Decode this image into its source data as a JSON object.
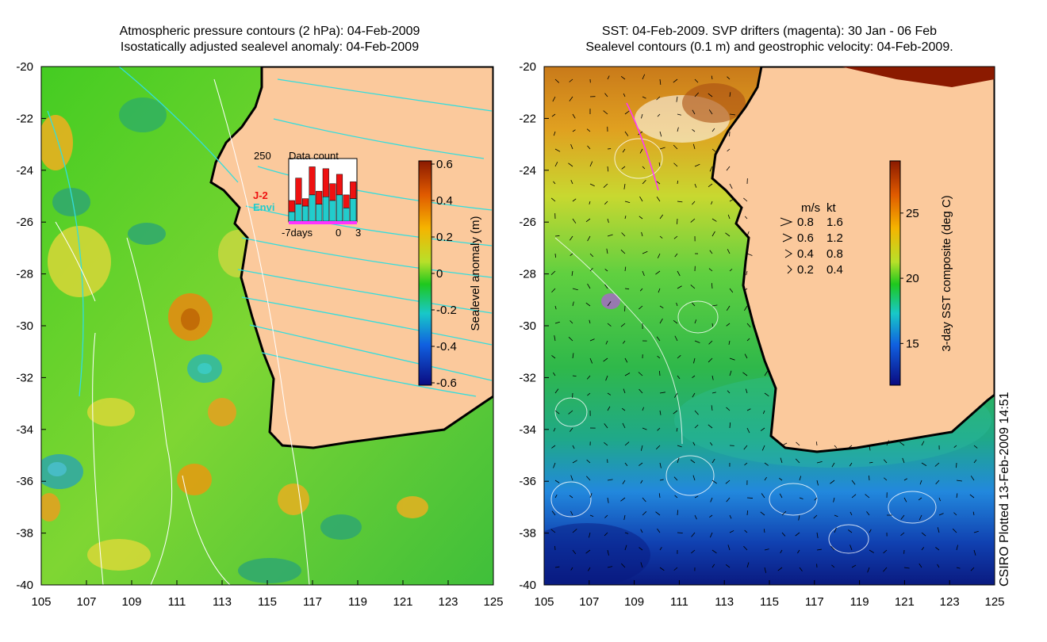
{
  "left_panel": {
    "title_line1": "Atmospheric pressure contours (2 hPa): 04-Feb-2009",
    "title_line2": "Isostatically adjusted sealevel anomaly: 04-Feb-2009",
    "colorbar_label": "Sealevel anomaly (m)",
    "colorbar_ticks": [
      "0.6",
      "0.4",
      "0.2",
      "0",
      "-0.2",
      "-0.4",
      "-0.6"
    ],
    "inset": {
      "title": "Data count",
      "max_label": "250",
      "legend_j2": "J-2",
      "legend_envi": "Envi",
      "x_left": "-7days",
      "x_zero": "0",
      "x_right": "3",
      "bars_total": [
        110,
        230,
        120,
        290,
        160,
        280,
        200,
        250,
        140,
        210
      ],
      "bars_envi": [
        50,
        90,
        80,
        140,
        90,
        130,
        110,
        140,
        70,
        120
      ],
      "ymax": 330,
      "colors": {
        "j2": "#ee1111",
        "envi": "#22cccc"
      }
    }
  },
  "right_panel": {
    "title_line1": "SST: 04-Feb-2009. SVP drifters (magenta): 30 Jan - 06 Feb",
    "title_line2": "Sealevel contours (0.1 m) and geostrophic velocity: 04-Feb-2009.",
    "colorbar_label": "3-day SST composite (deg C)",
    "colorbar_ticks": [
      "25",
      "20",
      "15"
    ],
    "velocity_legend": {
      "header_ms": "m/s",
      "header_kt": "kt",
      "rows": [
        {
          "ms": "0.8",
          "kt": "1.6"
        },
        {
          "ms": "0.6",
          "kt": "1.2"
        },
        {
          "ms": "0.4",
          "kt": "0.8"
        },
        {
          "ms": "0.2",
          "kt": "0.4"
        }
      ]
    }
  },
  "axes": {
    "y_ticks": [
      "-20",
      "-22",
      "-24",
      "-26",
      "-28",
      "-30",
      "-32",
      "-34",
      "-36",
      "-38",
      "-40"
    ],
    "x_ticks": [
      "105",
      "107",
      "109",
      "111",
      "113",
      "115",
      "117",
      "119",
      "121",
      "123",
      "125"
    ]
  },
  "credit": "CSIRO Plotted 13-Feb-2009 14:51",
  "colors": {
    "land": "#fbc99c",
    "coast": "#000000"
  }
}
